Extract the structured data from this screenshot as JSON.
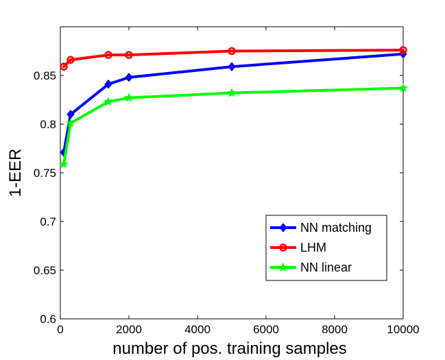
{
  "chart_data": {
    "type": "line",
    "title": "",
    "xlabel": "number of pos. training samples",
    "ylabel": "1-EER",
    "xlim": [
      0,
      10000
    ],
    "ylim": [
      0.6,
      0.9
    ],
    "x_ticks": [
      0,
      2000,
      4000,
      6000,
      8000,
      10000
    ],
    "x_tick_labels": [
      "0",
      "2000",
      "4000",
      "6000",
      "8000",
      "10000"
    ],
    "y_ticks": [
      0.6,
      0.65,
      0.7,
      0.75,
      0.8,
      0.85
    ],
    "y_tick_labels": [
      "0.6",
      "0.65",
      "0.7",
      "0.75",
      "0.8",
      "0.85"
    ],
    "grid": false,
    "legend_position": "lower-right",
    "series": [
      {
        "name": "NN matching",
        "color": "#0000ff",
        "marker": "diamond",
        "x": [
          100,
          300,
          1400,
          2000,
          5000,
          10000
        ],
        "y": [
          0.771,
          0.81,
          0.841,
          0.848,
          0.859,
          0.872
        ]
      },
      {
        "name": "LHM",
        "color": "#ff0000",
        "marker": "circle",
        "x": [
          100,
          300,
          1400,
          2000,
          5000,
          10000
        ],
        "y": [
          0.859,
          0.866,
          0.871,
          0.871,
          0.875,
          0.876
        ]
      },
      {
        "name": "NN linear",
        "color": "#00ff00",
        "marker": "star",
        "x": [
          100,
          300,
          1400,
          2000,
          5000,
          10000
        ],
        "y": [
          0.759,
          0.801,
          0.823,
          0.827,
          0.832,
          0.837
        ]
      }
    ]
  }
}
